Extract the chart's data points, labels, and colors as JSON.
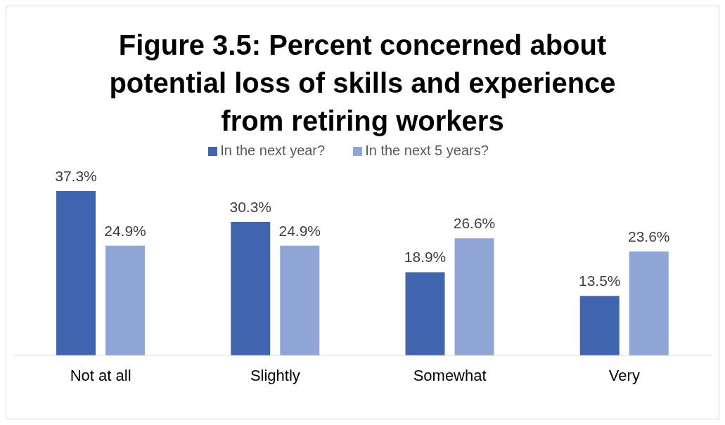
{
  "chart_data": {
    "type": "bar",
    "title": "Figure 3.5: Percent concerned about potential loss of skills and experience from retiring workers",
    "categories": [
      "Not at all",
      "Slightly",
      "Somewhat",
      "Very"
    ],
    "series": [
      {
        "name": "In the next year?",
        "color": "#4064ad",
        "values": [
          37.3,
          30.3,
          18.9,
          13.5
        ],
        "value_labels": [
          "37.3%",
          "30.3%",
          "18.9%",
          "13.5%"
        ]
      },
      {
        "name": "In the next 5 years?",
        "color": "#8fa5d5",
        "values": [
          24.9,
          24.9,
          26.6,
          23.6
        ],
        "value_labels": [
          "24.9%",
          "24.9%",
          "26.6%",
          "23.6%"
        ]
      }
    ],
    "legend": "top"
  }
}
